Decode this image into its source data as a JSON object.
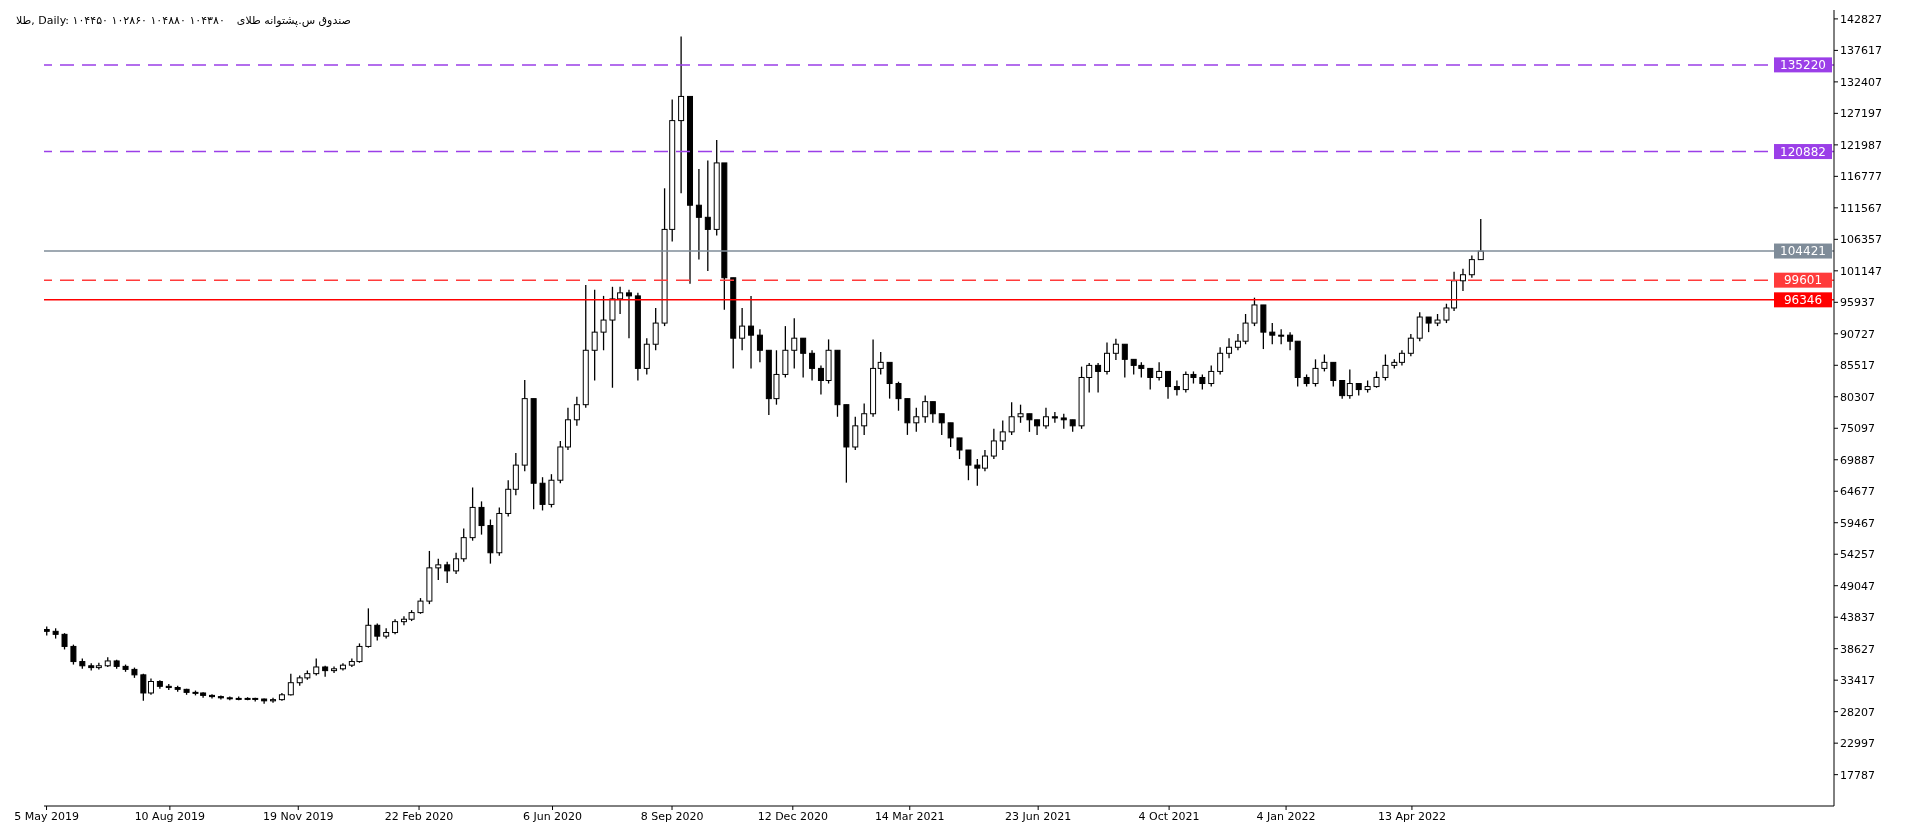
{
  "chart_data": {
    "type": "candlestick",
    "title": "طلا, Daily: ۱۰۴۴۵۰ ۱۰۲۸۶۰ ۱۰۴۸۸۰ ۱۰۴۳۸۰",
    "subtitle": "صندوق س.پشتوانه طلای",
    "color": "#000000",
    "x": [
      "2019-05-05",
      "2019-05-12",
      "2019-05-19",
      "2019-05-26",
      "2019-06-02",
      "2019-06-09",
      "2019-06-15",
      "2019-06-22",
      "2019-06-29",
      "2019-07-06",
      "2019-07-13",
      "2019-07-20",
      "2019-07-26",
      "2019-08-02",
      "2019-08-09",
      "2019-08-16",
      "2019-08-23",
      "2019-08-30",
      "2019-09-05",
      "2019-09-12",
      "2019-09-19",
      "2019-09-26",
      "2019-10-03",
      "2019-10-10",
      "2019-10-16",
      "2019-10-23",
      "2019-10-30",
      "2019-11-06",
      "2019-11-13",
      "2019-11-20",
      "2019-11-26",
      "2019-12-03",
      "2019-12-10",
      "2019-12-17",
      "2019-12-24",
      "2019-12-31",
      "2020-01-06",
      "2020-01-13",
      "2020-01-20",
      "2020-01-27",
      "2020-02-03",
      "2020-02-10",
      "2020-02-16",
      "2020-02-23",
      "2020-03-01",
      "2020-03-08",
      "2020-03-15",
      "2020-03-22",
      "2020-03-28",
      "2020-04-04",
      "2020-04-11",
      "2020-04-18",
      "2020-04-25",
      "2020-05-02",
      "2020-05-08",
      "2020-05-15",
      "2020-05-22",
      "2020-05-29",
      "2020-06-05",
      "2020-06-12",
      "2020-06-18",
      "2020-06-25",
      "2020-07-02",
      "2020-07-09",
      "2020-07-16",
      "2020-07-23",
      "2020-07-29",
      "2020-08-05",
      "2020-08-12",
      "2020-08-19",
      "2020-08-26",
      "2020-09-02",
      "2020-09-08",
      "2020-09-15",
      "2020-09-22",
      "2020-09-29",
      "2020-10-06",
      "2020-10-13",
      "2020-10-19",
      "2020-10-26",
      "2020-11-02",
      "2020-11-09",
      "2020-11-16",
      "2020-11-23",
      "2020-11-29",
      "2020-12-06",
      "2020-12-13",
      "2020-12-20",
      "2020-12-27",
      "2021-01-03",
      "2021-01-09",
      "2021-01-16",
      "2021-01-23",
      "2021-01-30",
      "2021-02-06",
      "2021-02-13",
      "2021-02-19",
      "2021-02-26",
      "2021-03-05",
      "2021-03-12",
      "2021-03-19",
      "2021-03-26",
      "2021-04-01",
      "2021-04-08",
      "2021-04-15",
      "2021-04-22",
      "2021-04-29",
      "2021-05-06",
      "2021-05-12",
      "2021-05-19",
      "2021-05-26",
      "2021-06-02",
      "2021-06-09",
      "2021-06-16",
      "2021-06-22",
      "2021-06-29",
      "2021-07-06",
      "2021-07-13",
      "2021-07-20",
      "2021-07-27",
      "2021-08-02",
      "2021-08-09",
      "2021-08-16",
      "2021-08-23",
      "2021-08-30",
      "2021-09-06",
      "2021-09-12",
      "2021-09-19",
      "2021-09-26",
      "2021-10-03",
      "2021-10-10",
      "2021-10-17",
      "2021-10-23",
      "2021-10-30",
      "2021-11-06",
      "2021-11-13",
      "2021-11-20",
      "2021-11-27",
      "2021-12-03",
      "2021-12-10",
      "2021-12-17",
      "2021-12-24",
      "2021-12-31",
      "2022-01-07",
      "2022-01-13",
      "2022-01-20",
      "2022-01-27",
      "2022-02-03",
      "2022-02-10",
      "2022-02-17",
      "2022-02-23",
      "2022-03-02",
      "2022-03-09",
      "2022-03-16",
      "2022-03-23",
      "2022-03-30",
      "2022-04-05",
      "2022-04-12",
      "2022-04-19",
      "2022-04-26",
      "2022-05-03",
      "2022-05-10",
      "2022-05-16",
      "2022-05-23",
      "2022-05-30",
      "2022-06-06"
    ],
    "ohlc": [
      [
        41800,
        42300,
        40800,
        41500
      ],
      [
        41500,
        42000,
        40300,
        41000
      ],
      [
        41000,
        41200,
        38500,
        39000
      ],
      [
        39000,
        39300,
        36000,
        36500
      ],
      [
        36500,
        37000,
        35300,
        35800
      ],
      [
        35800,
        36200,
        35000,
        35500
      ],
      [
        35500,
        36300,
        35200,
        35800
      ],
      [
        35800,
        37200,
        35600,
        36600
      ],
      [
        36600,
        36800,
        35300,
        35700
      ],
      [
        35700,
        36000,
        34800,
        35200
      ],
      [
        35200,
        35500,
        33800,
        34300
      ],
      [
        34300,
        34500,
        30000,
        31300
      ],
      [
        31300,
        33700,
        31000,
        33200
      ],
      [
        33200,
        33400,
        32000,
        32400
      ],
      [
        32400,
        32800,
        31800,
        32200
      ],
      [
        32200,
        32500,
        31500,
        31900
      ],
      [
        31900,
        32000,
        31000,
        31400
      ],
      [
        31400,
        31700,
        30900,
        31300
      ],
      [
        31300,
        31400,
        30500,
        30900
      ],
      [
        30900,
        31100,
        30400,
        30700
      ],
      [
        30700,
        30900,
        30200,
        30500
      ],
      [
        30500,
        30700,
        30100,
        30400
      ],
      [
        30400,
        30700,
        30100,
        30400
      ],
      [
        30400,
        30600,
        30100,
        30400
      ],
      [
        30400,
        30500,
        29900,
        30300
      ],
      [
        30300,
        30400,
        29500,
        30000
      ],
      [
        30000,
        30500,
        29700,
        30200
      ],
      [
        30200,
        31300,
        30000,
        31000
      ],
      [
        31000,
        34500,
        30900,
        33000
      ],
      [
        33000,
        34200,
        32500,
        33800
      ],
      [
        33800,
        35000,
        33500,
        34500
      ],
      [
        34500,
        37000,
        34200,
        35600
      ],
      [
        35600,
        35800,
        34000,
        35000
      ],
      [
        35000,
        35700,
        34600,
        35300
      ],
      [
        35300,
        36200,
        35000,
        35900
      ],
      [
        35900,
        37000,
        35600,
        36500
      ],
      [
        36500,
        39500,
        36300,
        39000
      ],
      [
        39000,
        45300,
        38800,
        42500
      ],
      [
        42500,
        42800,
        40000,
        40700
      ],
      [
        40700,
        42000,
        40300,
        41300
      ],
      [
        41300,
        43500,
        41000,
        43100
      ],
      [
        43100,
        44000,
        42500,
        43500
      ],
      [
        43500,
        45000,
        43200,
        44600
      ],
      [
        44600,
        47000,
        44400,
        46500
      ],
      [
        46500,
        54800,
        46000,
        52000
      ],
      [
        52000,
        53500,
        50000,
        52500
      ],
      [
        52500,
        53000,
        49500,
        51500
      ],
      [
        51500,
        54500,
        51000,
        53500
      ],
      [
        53500,
        58500,
        53000,
        57000
      ],
      [
        57000,
        65300,
        56500,
        62000
      ],
      [
        62000,
        63000,
        57500,
        59000
      ],
      [
        59000,
        60000,
        52700,
        54500
      ],
      [
        54500,
        62000,
        54000,
        61000
      ],
      [
        61000,
        66500,
        60500,
        65000
      ],
      [
        65000,
        71000,
        64000,
        69000
      ],
      [
        69000,
        83100,
        68000,
        80000
      ],
      [
        80000,
        80000,
        61700,
        66000
      ],
      [
        66000,
        67000,
        61500,
        62500
      ],
      [
        62500,
        67500,
        62000,
        66500
      ],
      [
        66500,
        73000,
        66000,
        72000
      ],
      [
        72000,
        78500,
        71500,
        76500
      ],
      [
        76500,
        80300,
        75500,
        79000
      ],
      [
        79000,
        98800,
        78500,
        88000
      ],
      [
        88000,
        98000,
        83000,
        91000
      ],
      [
        91000,
        97000,
        88000,
        93000
      ],
      [
        93000,
        98500,
        81800,
        96500
      ],
      [
        96500,
        98500,
        94000,
        97500
      ],
      [
        97500,
        98000,
        90000,
        97000
      ],
      [
        97000,
        97500,
        83000,
        85000
      ],
      [
        85000,
        90000,
        84000,
        89000
      ],
      [
        89000,
        95000,
        88000,
        92500
      ],
      [
        92500,
        114800,
        92000,
        108000
      ],
      [
        108000,
        129500,
        106000,
        126000
      ],
      [
        126000,
        139900,
        114000,
        130000
      ],
      [
        130000,
        130000,
        99000,
        112000
      ],
      [
        112000,
        118000,
        103000,
        110000
      ],
      [
        110000,
        119400,
        101100,
        108000
      ],
      [
        108000,
        122800,
        107000,
        119000
      ],
      [
        119000,
        119000,
        94700,
        100000
      ],
      [
        100000,
        100000,
        85000,
        90000
      ],
      [
        90000,
        95000,
        88000,
        92000
      ],
      [
        92000,
        97000,
        85000,
        90500
      ],
      [
        90500,
        91500,
        86000,
        88000
      ],
      [
        88000,
        88000,
        77300,
        80000
      ],
      [
        80000,
        88000,
        79000,
        84000
      ],
      [
        84000,
        92000,
        83500,
        88000
      ],
      [
        88000,
        93300,
        85000,
        90000
      ],
      [
        90000,
        90000,
        83500,
        87500
      ],
      [
        87500,
        88000,
        83000,
        85000
      ],
      [
        85000,
        85500,
        80700,
        83000
      ],
      [
        83000,
        89800,
        82500,
        88000
      ],
      [
        88000,
        88000,
        77000,
        79000
      ],
      [
        79000,
        79000,
        66100,
        72000
      ],
      [
        72000,
        77000,
        71500,
        75500
      ],
      [
        75500,
        79200,
        74000,
        77500
      ],
      [
        77500,
        89800,
        77000,
        85000
      ],
      [
        85000,
        87700,
        84000,
        86000
      ],
      [
        86000,
        86000,
        80000,
        82500
      ],
      [
        82500,
        82800,
        78000,
        80000
      ],
      [
        80000,
        80000,
        74000,
        76000
      ],
      [
        76000,
        78500,
        74500,
        77000
      ],
      [
        77000,
        80500,
        76000,
        79500
      ],
      [
        79500,
        79500,
        76000,
        77500
      ],
      [
        77500,
        77500,
        74000,
        76000
      ],
      [
        76000,
        76000,
        72000,
        73500
      ],
      [
        73500,
        73500,
        70000,
        71500
      ],
      [
        71500,
        71500,
        66500,
        69000
      ],
      [
        69000,
        70000,
        65600,
        68500
      ],
      [
        68500,
        71500,
        68000,
        70500
      ],
      [
        70500,
        75000,
        70000,
        73000
      ],
      [
        73000,
        76400,
        71500,
        74500
      ],
      [
        74500,
        79400,
        74000,
        77000
      ],
      [
        77000,
        79000,
        76000,
        77500
      ],
      [
        77500,
        77500,
        74500,
        76500
      ],
      [
        76500,
        76500,
        74000,
        75500
      ],
      [
        75500,
        78500,
        75000,
        77000
      ],
      [
        77000,
        77800,
        76000,
        76800
      ],
      [
        76800,
        77500,
        75000,
        76500
      ],
      [
        76500,
        76500,
        74500,
        75500
      ],
      [
        75500,
        85300,
        75000,
        83500
      ],
      [
        83500,
        85900,
        81000,
        85500
      ],
      [
        85500,
        85900,
        81000,
        84500
      ],
      [
        84500,
        89300,
        84000,
        87500
      ],
      [
        87500,
        89900,
        86400,
        89000
      ],
      [
        89000,
        89000,
        83500,
        86500
      ],
      [
        86500,
        86500,
        84000,
        85500
      ],
      [
        85500,
        86000,
        83500,
        85000
      ],
      [
        85000,
        85000,
        81500,
        83500
      ],
      [
        83500,
        86000,
        83000,
        84500
      ],
      [
        84500,
        84500,
        80000,
        82000
      ],
      [
        82000,
        83000,
        80500,
        81500
      ],
      [
        81500,
        84500,
        81000,
        84000
      ],
      [
        84000,
        84500,
        82500,
        83500
      ],
      [
        83500,
        84000,
        81500,
        82500
      ],
      [
        82500,
        85500,
        82000,
        84500
      ],
      [
        84500,
        88500,
        84000,
        87500
      ],
      [
        87500,
        90000,
        86700,
        88500
      ],
      [
        88500,
        90700,
        88000,
        89500
      ],
      [
        89500,
        94000,
        89000,
        92500
      ],
      [
        92500,
        96700,
        92000,
        95500
      ],
      [
        95500,
        95500,
        88200,
        91000
      ],
      [
        91000,
        92500,
        89000,
        90500
      ],
      [
        90500,
        91500,
        89000,
        90500
      ],
      [
        90500,
        91000,
        88000,
        89500
      ],
      [
        89500,
        89500,
        82000,
        83500
      ],
      [
        83500,
        84000,
        82000,
        82500
      ],
      [
        82500,
        86500,
        82000,
        85000
      ],
      [
        85000,
        87300,
        84500,
        86000
      ],
      [
        86000,
        86000,
        82000,
        83000
      ],
      [
        83000,
        83000,
        80000,
        80500
      ],
      [
        80500,
        84800,
        80000,
        82500
      ],
      [
        82500,
        82500,
        80500,
        81500
      ],
      [
        81500,
        83000,
        81000,
        82000
      ],
      [
        82000,
        84500,
        81800,
        83500
      ],
      [
        83500,
        87300,
        83000,
        85500
      ],
      [
        85500,
        86500,
        85000,
        86000
      ],
      [
        86000,
        88000,
        85500,
        87500
      ],
      [
        87500,
        90700,
        87000,
        90000
      ],
      [
        90000,
        94300,
        89500,
        93500
      ],
      [
        93500,
        93500,
        91000,
        92500
      ],
      [
        92500,
        94000,
        92000,
        93000
      ],
      [
        93000,
        95700,
        92500,
        95000
      ],
      [
        95000,
        101000,
        94500,
        99500
      ],
      [
        99500,
        101500,
        97800,
        100500
      ],
      [
        100500,
        103700,
        100000,
        103000
      ],
      [
        103000,
        109700,
        103000,
        104400
      ]
    ],
    "xlim": [
      "2019-05-03",
      "2023-03-11"
    ],
    "xticks": [
      {
        "value": "2019-05-05",
        "label": "5 May 2019"
      },
      {
        "value": "2019-08-10",
        "label": "10 Aug 2019"
      },
      {
        "value": "2019-11-19",
        "label": "19 Nov 2019"
      },
      {
        "value": "2020-02-22",
        "label": "22 Feb 2020"
      },
      {
        "value": "2020-06-06",
        "label": "6 Jun 2020"
      },
      {
        "value": "2020-09-08",
        "label": "8 Sep 2020"
      },
      {
        "value": "2020-12-12",
        "label": "12 Dec 2020"
      },
      {
        "value": "2021-03-14",
        "label": "14 Mar 2021"
      },
      {
        "value": "2021-06-23",
        "label": "23 Jun 2021"
      },
      {
        "value": "2021-10-04",
        "label": "4 Oct 2021"
      },
      {
        "value": "2022-01-04",
        "label": "4 Jan 2022"
      },
      {
        "value": "2022-04-13",
        "label": "13 Apr 2022"
      }
    ],
    "ylim": [
      12600,
      144300
    ],
    "yticks": [
      17787,
      22997,
      28207,
      33417,
      38627,
      43837,
      49047,
      54257,
      59467,
      64677,
      69887,
      75097,
      80307,
      85517,
      90727,
      95937,
      101147,
      106357,
      111567,
      116777,
      121987,
      127197,
      132407,
      137617,
      142827
    ],
    "ref_lines": [
      {
        "axis": "y",
        "value": 135220,
        "label": "135220",
        "color": "#9b3fe8",
        "line_style": "dashed"
      },
      {
        "axis": "y",
        "value": 120882,
        "label": "120882",
        "color": "#9b3fe8",
        "line_style": "dashed"
      },
      {
        "axis": "y",
        "value": 104421,
        "label": "104421",
        "color": "#7f8c99",
        "line_style": "solid"
      },
      {
        "axis": "y",
        "value": 99601,
        "label": "99601",
        "color": "#ff3b3b",
        "line_style": "dashed"
      },
      {
        "axis": "y",
        "value": 96346,
        "label": "96346",
        "color": "#ff0000",
        "line_style": "solid"
      }
    ],
    "grid": false,
    "legend": false
  }
}
